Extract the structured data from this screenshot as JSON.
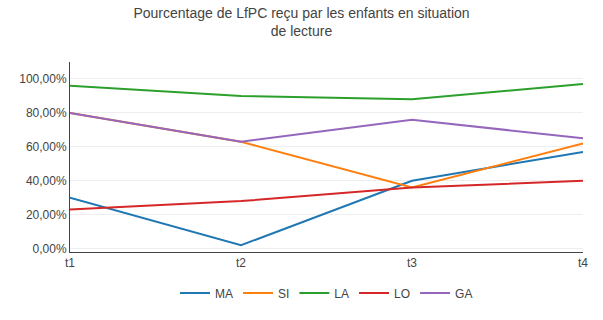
{
  "chart_data": {
    "type": "line",
    "title": "Pourcentage de LfPC reçu par les enfants en situation\nde lecture",
    "categories": [
      "t1",
      "t2",
      "t3",
      "t4"
    ],
    "series": [
      {
        "name": "MA",
        "values": [
          0.3,
          0.02,
          0.4,
          0.57
        ]
      },
      {
        "name": "SI",
        "values": [
          0.8,
          0.63,
          0.36,
          0.62
        ]
      },
      {
        "name": "LA",
        "values": [
          0.96,
          0.9,
          0.88,
          0.97
        ]
      },
      {
        "name": "LO",
        "values": [
          0.23,
          0.28,
          0.36,
          0.4
        ]
      },
      {
        "name": "GA",
        "values": [
          0.8,
          0.63,
          0.76,
          0.65
        ]
      }
    ],
    "ylim": [
      -0.02,
      1.1
    ],
    "yticks": [
      {
        "value": 0,
        "label": "0,00%"
      },
      {
        "value": 0.2,
        "label": "20,00%"
      },
      {
        "value": 0.4,
        "label": "40,00%"
      },
      {
        "value": 0.6,
        "label": "60,00%"
      },
      {
        "value": 0.8,
        "label": "80,00%"
      },
      {
        "value": 1,
        "label": "100,00%"
      }
    ],
    "grid": true,
    "legend": "bottom"
  }
}
